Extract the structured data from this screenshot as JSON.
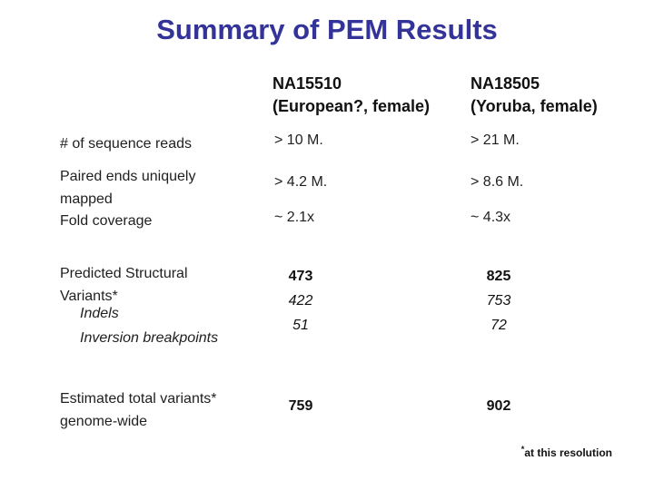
{
  "slide": {
    "title": "Summary of PEM Results",
    "footnote": {
      "star": "*",
      "text": "at this resolution"
    },
    "colors": {
      "title_blue": "#333399",
      "body_text": "#1f1f1f",
      "background": "#ffffff"
    }
  },
  "table": {
    "col_headers": [
      {
        "line1": "NA15510",
        "line2": "(European?, female)"
      },
      {
        "line1": "NA18505",
        "line2": "(Yoruba, female)"
      }
    ],
    "rows": {
      "sequence_reads": {
        "label": "# of sequence reads",
        "na15510": "> 10 M.",
        "na18505": "> 21 M."
      },
      "paired_ends": {
        "label_line1": "Paired ends uniquely",
        "label_line2": "mapped",
        "na15510": "> 4.2 M.",
        "na18505": "> 8.6 M."
      },
      "fold_coverage": {
        "label": "Fold coverage",
        "na15510": "~ 2.1x",
        "na18505": "~ 4.3x"
      },
      "predicted_sv": {
        "label_line1": "Predicted Structural",
        "label_line2": "Variants*",
        "na15510": "473",
        "na18505": "825"
      },
      "indels": {
        "label": "Indels",
        "na15510": "422",
        "na18505": "753"
      },
      "inversion_breakpoints": {
        "label": "Inversion breakpoints",
        "na15510": "51",
        "na18505": "72"
      },
      "estimated_total": {
        "label_line1": "Estimated total variants*",
        "label_line2": "genome-wide",
        "na15510": "759",
        "na18505": "902"
      }
    }
  }
}
